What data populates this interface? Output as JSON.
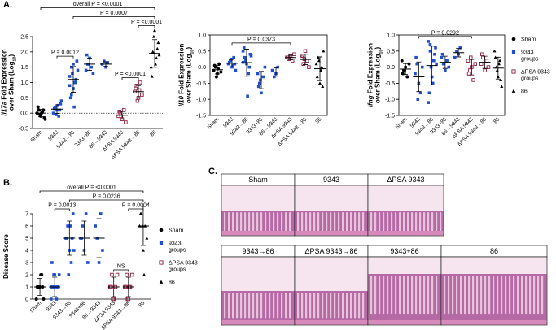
{
  "figure": {
    "panels": [
      "A.",
      "B.",
      "C."
    ],
    "histology": [
      "Sham",
      "9343",
      "ΔPSA 9343",
      "9343→86",
      "ΔPSA 9343→86",
      "9343+86",
      "86"
    ]
  },
  "chart_data": [
    {
      "type": "dotplot",
      "ylabel": [
        [
          "Il17a",
          " Fold Expression"
        ],
        [
          "over Sham (Log",
          "10",
          ")"
        ]
      ],
      "categories": [
        "Sham",
        "9343",
        "9343→86",
        "9343+86",
        "86→9343",
        "ΔPSA 9343",
        "ΔPSA 9343→86",
        "86"
      ],
      "category_group": [
        0,
        1,
        1,
        1,
        1,
        2,
        2,
        3
      ],
      "values": [
        [
          0.0,
          0.1,
          -0.1,
          0.05,
          -0.15,
          0.2,
          -0.05,
          0.0,
          0.1,
          -0.2
        ],
        [
          0.0,
          0.2,
          0.1,
          -0.1,
          0.3,
          0.15,
          -0.05,
          0.25,
          0.1,
          0.4
        ],
        [
          1.2,
          1.5,
          0.8,
          1.0,
          1.7,
          0.5,
          1.3,
          0.2,
          1.1,
          1.4,
          0.9,
          0.6,
          1.6,
          1.0
        ],
        [
          1.4,
          1.6,
          1.8,
          1.5,
          1.3,
          1.9,
          1.6
        ],
        [
          1.6,
          1.7,
          1.5,
          1.65
        ],
        [
          -0.1,
          0.0,
          -0.2,
          0.1,
          -0.3,
          0.05,
          -0.1
        ],
        [
          0.7,
          0.9,
          0.5,
          1.0,
          0.6,
          0.8,
          0.4,
          0.75
        ],
        [
          1.5,
          2.0,
          2.7,
          1.8,
          2.3,
          1.2,
          2.5,
          1.6,
          2.1,
          1.9
        ]
      ],
      "means": [
        0.0,
        0.13,
        1.1,
        1.6,
        1.6,
        -0.07,
        0.7,
        1.95
      ],
      "sds": [
        0.12,
        0.14,
        0.42,
        0.2,
        0.08,
        0.13,
        0.2,
        0.45
      ],
      "ylim": [
        -0.5,
        2.5
      ],
      "yticks": [
        -0.5,
        {
          "value": 0,
          "label": "0.0"
        },
        0.5,
        {
          "value": 1,
          "label": "1.0"
        },
        1.5,
        {
          "value": 2,
          "label": "2.0"
        },
        2.5
      ],
      "refline": 0,
      "frame": false,
      "annotations": [
        {
          "text": "P = 0.0012",
          "from": 1,
          "to": 2
        },
        {
          "text": "P = <0.0001",
          "from": 5,
          "to": 6
        },
        {
          "text": "P = <0.0001",
          "from": 6,
          "to": 7
        },
        {
          "text": "P = 0.0007",
          "from": 2,
          "to": 7
        },
        {
          "text": "overall P = <0.0001",
          "from": 0,
          "to": 7
        }
      ]
    },
    {
      "type": "dotplot",
      "ylabel": [
        [
          "Il10",
          " Fold Expression"
        ],
        [
          "over Sham (Log",
          "10",
          ")"
        ]
      ],
      "categories": [
        "Sham",
        "9343",
        "9343→86",
        "9343+86",
        "86→9343",
        "ΔPSA 9343",
        "ΔPSA 9343→86",
        "86"
      ],
      "category_group": [
        0,
        1,
        1,
        1,
        1,
        2,
        2,
        3
      ],
      "values": [
        [
          -0.1,
          0.0,
          -0.2,
          0.1,
          -0.15,
          0.05,
          -0.3,
          -0.05
        ],
        [
          0.1,
          0.2,
          0.0,
          0.3,
          -0.1,
          0.15,
          0.25,
          0.05,
          0.1
        ],
        [
          0.5,
          0.3,
          0.1,
          -0.2,
          0.4,
          0.6,
          0.2,
          -0.9,
          0.0,
          0.35,
          0.15
        ],
        [
          -0.2,
          -0.5,
          -0.8,
          -0.3,
          0.0,
          -0.6,
          -0.4
        ],
        [
          -0.1,
          -0.3,
          -0.2,
          0.0
        ],
        [
          0.3,
          0.25,
          0.35,
          0.2,
          0.4,
          0.3
        ],
        [
          0.3,
          0.1,
          0.5,
          0.2,
          0.0,
          0.35,
          0.25
        ],
        [
          0.1,
          0.3,
          -0.5,
          0.0,
          0.5,
          -0.3,
          0.2,
          -0.1,
          -0.6
        ]
      ],
      "means": [
        -0.08,
        0.12,
        0.14,
        -0.4,
        -0.15,
        0.3,
        0.24,
        -0.05
      ],
      "sds": [
        0.13,
        0.12,
        0.42,
        0.27,
        0.13,
        0.07,
        0.16,
        0.37
      ],
      "ylim": [
        -1.5,
        1.0
      ],
      "yticks": [
        -1.5,
        {
          "value": -1,
          "label": "-1.0"
        },
        -0.5,
        {
          "value": 0,
          "label": "0.0"
        },
        0.5,
        {
          "value": 1,
          "label": "1.0"
        }
      ],
      "refline": 0,
      "frame": true,
      "annotations": [
        {
          "text": "P = 0.0373",
          "from": 1,
          "to": 5
        }
      ]
    },
    {
      "type": "dotplot",
      "ylabel": [
        [
          "Ifng",
          " Fold Expression"
        ],
        [
          "over Sham (Log",
          "10",
          ")"
        ]
      ],
      "categories": [
        "Sham",
        "9343",
        "9343→86",
        "9343+86",
        "86→9343",
        "ΔPSA 9343",
        "ΔPSA 9343→86",
        "86"
      ],
      "category_group": [
        0,
        1,
        1,
        1,
        1,
        2,
        2,
        3
      ],
      "values": [
        [
          0.2,
          -0.1,
          0.0,
          -0.3,
          0.1,
          -0.2,
          -0.1
        ],
        [
          -0.2,
          0.1,
          -0.5,
          -0.8,
          0.0,
          0.3,
          -1.0
        ],
        [
          0.8,
          0.5,
          -0.3,
          0.2,
          0.6,
          -0.8,
          0.0,
          -0.5,
          0.4,
          0.1,
          -1.1,
          0.7
        ],
        [
          0.3,
          0.1,
          -0.1,
          0.2,
          0.0,
          0.4
        ],
        [
          0.3,
          0.5,
          0.4,
          0.6
        ],
        [
          0.2,
          -0.1,
          0.0,
          -0.4,
          0.1,
          -0.2,
          0.3
        ],
        [
          0.1,
          0.3,
          -0.1,
          0.2,
          0.0,
          0.4
        ],
        [
          0.5,
          0.0,
          -0.3,
          0.2,
          -0.6,
          0.3,
          -0.1,
          0.1,
          -0.4
        ]
      ],
      "means": [
        -0.06,
        -0.3,
        0.05,
        0.15,
        0.45,
        0.0,
        0.15,
        -0.03
      ],
      "sds": [
        0.17,
        0.46,
        0.6,
        0.19,
        0.13,
        0.24,
        0.19,
        0.34
      ],
      "ylim": [
        -1.5,
        1.0
      ],
      "yticks": [
        -1.5,
        {
          "value": -1,
          "label": "-1.0"
        },
        -0.5,
        {
          "value": 0,
          "label": "0.0"
        },
        0.5,
        {
          "value": 1,
          "label": "1.0"
        }
      ],
      "refline": 0,
      "frame": true,
      "annotations": [
        {
          "text": "P = 0.0292",
          "from": 1,
          "to": 5
        }
      ],
      "legend": [
        {
          "name": [
            "Sham"
          ],
          "color": "#000000",
          "marker": "circle"
        },
        {
          "name": [
            "9343",
            "groups"
          ],
          "color": "#1f4fd1",
          "marker": "square"
        },
        {
          "name": [
            "ΔPSA 9343",
            "groups"
          ],
          "color": "#8b1c3c",
          "marker": "open-square"
        },
        {
          "name": [
            "86"
          ],
          "color": "#000000",
          "marker": "triangle"
        }
      ]
    },
    {
      "type": "dotplot",
      "ylabel": [
        [
          "Disease Score"
        ]
      ],
      "categories": [
        "Sham",
        "9343",
        "9343→86",
        "9343+86",
        "86→9343",
        "ΔPSA 9343",
        "ΔPSA 9343→86",
        "86"
      ],
      "category_group": [
        0,
        1,
        1,
        1,
        1,
        2,
        2,
        3
      ],
      "values": [
        [
          0,
          1,
          1,
          2,
          0,
          1,
          1,
          2,
          1
        ],
        [
          1,
          1,
          2,
          0,
          1,
          3,
          2,
          1,
          1,
          2,
          0,
          1
        ],
        [
          5,
          6,
          4,
          3,
          7,
          5,
          2,
          6,
          5,
          4
        ],
        [
          5,
          6,
          4,
          7,
          3,
          5
        ],
        [
          6,
          5,
          3,
          7,
          4
        ],
        [
          1,
          2,
          0,
          1,
          2,
          1,
          0
        ],
        [
          1,
          2,
          0,
          1,
          2,
          1,
          0,
          1
        ],
        [
          6,
          7,
          4,
          6,
          5,
          7,
          6,
          2
        ]
      ],
      "means": [
        1,
        1,
        5,
        5,
        5,
        1,
        1,
        6
      ],
      "sds": [
        0.7,
        0.8,
        1.4,
        1.4,
        1.6,
        0.8,
        0.8,
        1.6
      ],
      "ylim": [
        0,
        7
      ],
      "yticks": [
        0,
        1,
        2,
        3,
        4,
        5,
        6,
        7
      ],
      "frame": false,
      "annotations": [
        {
          "text": "P = 0.0013",
          "from": 1,
          "to": 2
        },
        {
          "text": "NS",
          "from": 5,
          "to": 6
        },
        {
          "text": "P = 0.0004",
          "from": 6,
          "to": 7
        },
        {
          "text": "P = 0.0236",
          "from": 2,
          "to": 7
        },
        {
          "text": "overall P = <0.0001",
          "from": 0,
          "to": 7
        }
      ],
      "legend": [
        {
          "name": [
            "Sham"
          ],
          "color": "#000000",
          "marker": "circle"
        },
        {
          "name": [
            "9343",
            "groups"
          ],
          "color": "#1f4fd1",
          "marker": "square"
        },
        {
          "name": [
            "ΔPSA 9343",
            "groups"
          ],
          "color": "#8b1c3c",
          "marker": "open-square"
        },
        {
          "name": [
            "86"
          ],
          "color": "#000000",
          "marker": "triangle"
        }
      ]
    }
  ]
}
